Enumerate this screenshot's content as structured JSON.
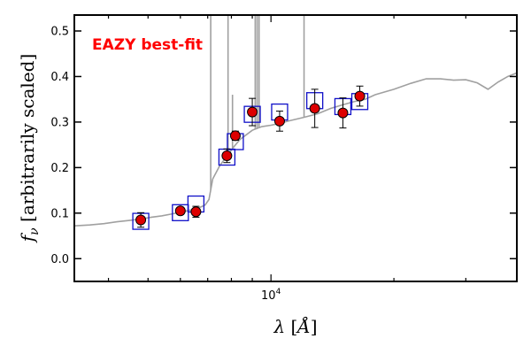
{
  "chart_data": {
    "type": "scatter",
    "title": "",
    "xscale": "log",
    "xlim": [
      3300,
      40000
    ],
    "ylim": [
      -0.05,
      0.535
    ],
    "xlabel": "λ [Å]",
    "ylabel": "f_ν [arbitrarily scaled]",
    "annotation": {
      "text": "EAZY best-fit",
      "color": "#ff0000"
    },
    "x_tick_labels": [
      {
        "value": 10000,
        "base": "10",
        "exp": "4"
      }
    ],
    "y_ticks": [
      0.0,
      0.1,
      0.2,
      0.3,
      0.4,
      0.5
    ],
    "y_tick_labels": [
      "0.0",
      "0.1",
      "0.2",
      "0.3",
      "0.4",
      "0.5"
    ],
    "grid": false,
    "colors": {
      "model": "#a0a0a0",
      "observed_face": "#dd0000",
      "observed_edge": "#000000",
      "model_photometry": "#1010c8",
      "annotation": "#ff0000"
    },
    "series": [
      {
        "kind": "observed",
        "x": [
          4800,
          6000,
          6550,
          7800,
          8180,
          9000,
          10500,
          12800,
          15000,
          16500
        ],
        "y": [
          0.085,
          0.105,
          0.103,
          0.226,
          0.27,
          0.322,
          0.302,
          0.33,
          0.32,
          0.357
        ],
        "yerr": [
          0.016,
          0.008,
          0.012,
          0.015,
          0.01,
          0.03,
          0.022,
          0.042,
          0.033,
          0.022
        ]
      },
      {
        "kind": "model_photometry",
        "x": [
          4800,
          6000,
          6550,
          7800,
          8180,
          9000,
          10500,
          12800,
          15000,
          16500
        ],
        "y": [
          0.082,
          0.101,
          0.12,
          0.223,
          0.257,
          0.317,
          0.322,
          0.347,
          0.334,
          0.345
        ]
      },
      {
        "kind": "model_sed",
        "x": [
          3300,
          3600,
          3900,
          4200,
          4500,
          4800,
          5100,
          5400,
          5700,
          6000,
          6300,
          6600,
          6900,
          7050,
          7200,
          7500,
          7800,
          8100,
          8400,
          8700,
          9000,
          9500,
          10000,
          10500,
          11000,
          12000,
          13000,
          14000,
          15000,
          16000,
          17000,
          18000,
          20000,
          22000,
          24000,
          26000,
          28000,
          30000,
          32000,
          34000,
          36000,
          38000,
          40000
        ],
        "y": [
          0.072,
          0.074,
          0.077,
          0.081,
          0.084,
          0.087,
          0.091,
          0.094,
          0.098,
          0.102,
          0.106,
          0.11,
          0.118,
          0.13,
          0.175,
          0.205,
          0.225,
          0.245,
          0.262,
          0.272,
          0.282,
          0.29,
          0.293,
          0.297,
          0.302,
          0.31,
          0.318,
          0.33,
          0.338,
          0.345,
          0.35,
          0.36,
          0.372,
          0.385,
          0.395,
          0.395,
          0.392,
          0.393,
          0.386,
          0.372,
          0.388,
          0.4,
          0.408
        ]
      },
      {
        "kind": "emission_lines",
        "x": [
          7120,
          7850,
          8050,
          9150,
          9250,
          9350,
          12050
        ],
        "y": [
          0.535,
          0.535,
          0.36,
          0.535,
          0.535,
          0.535,
          0.535
        ]
      }
    ]
  }
}
